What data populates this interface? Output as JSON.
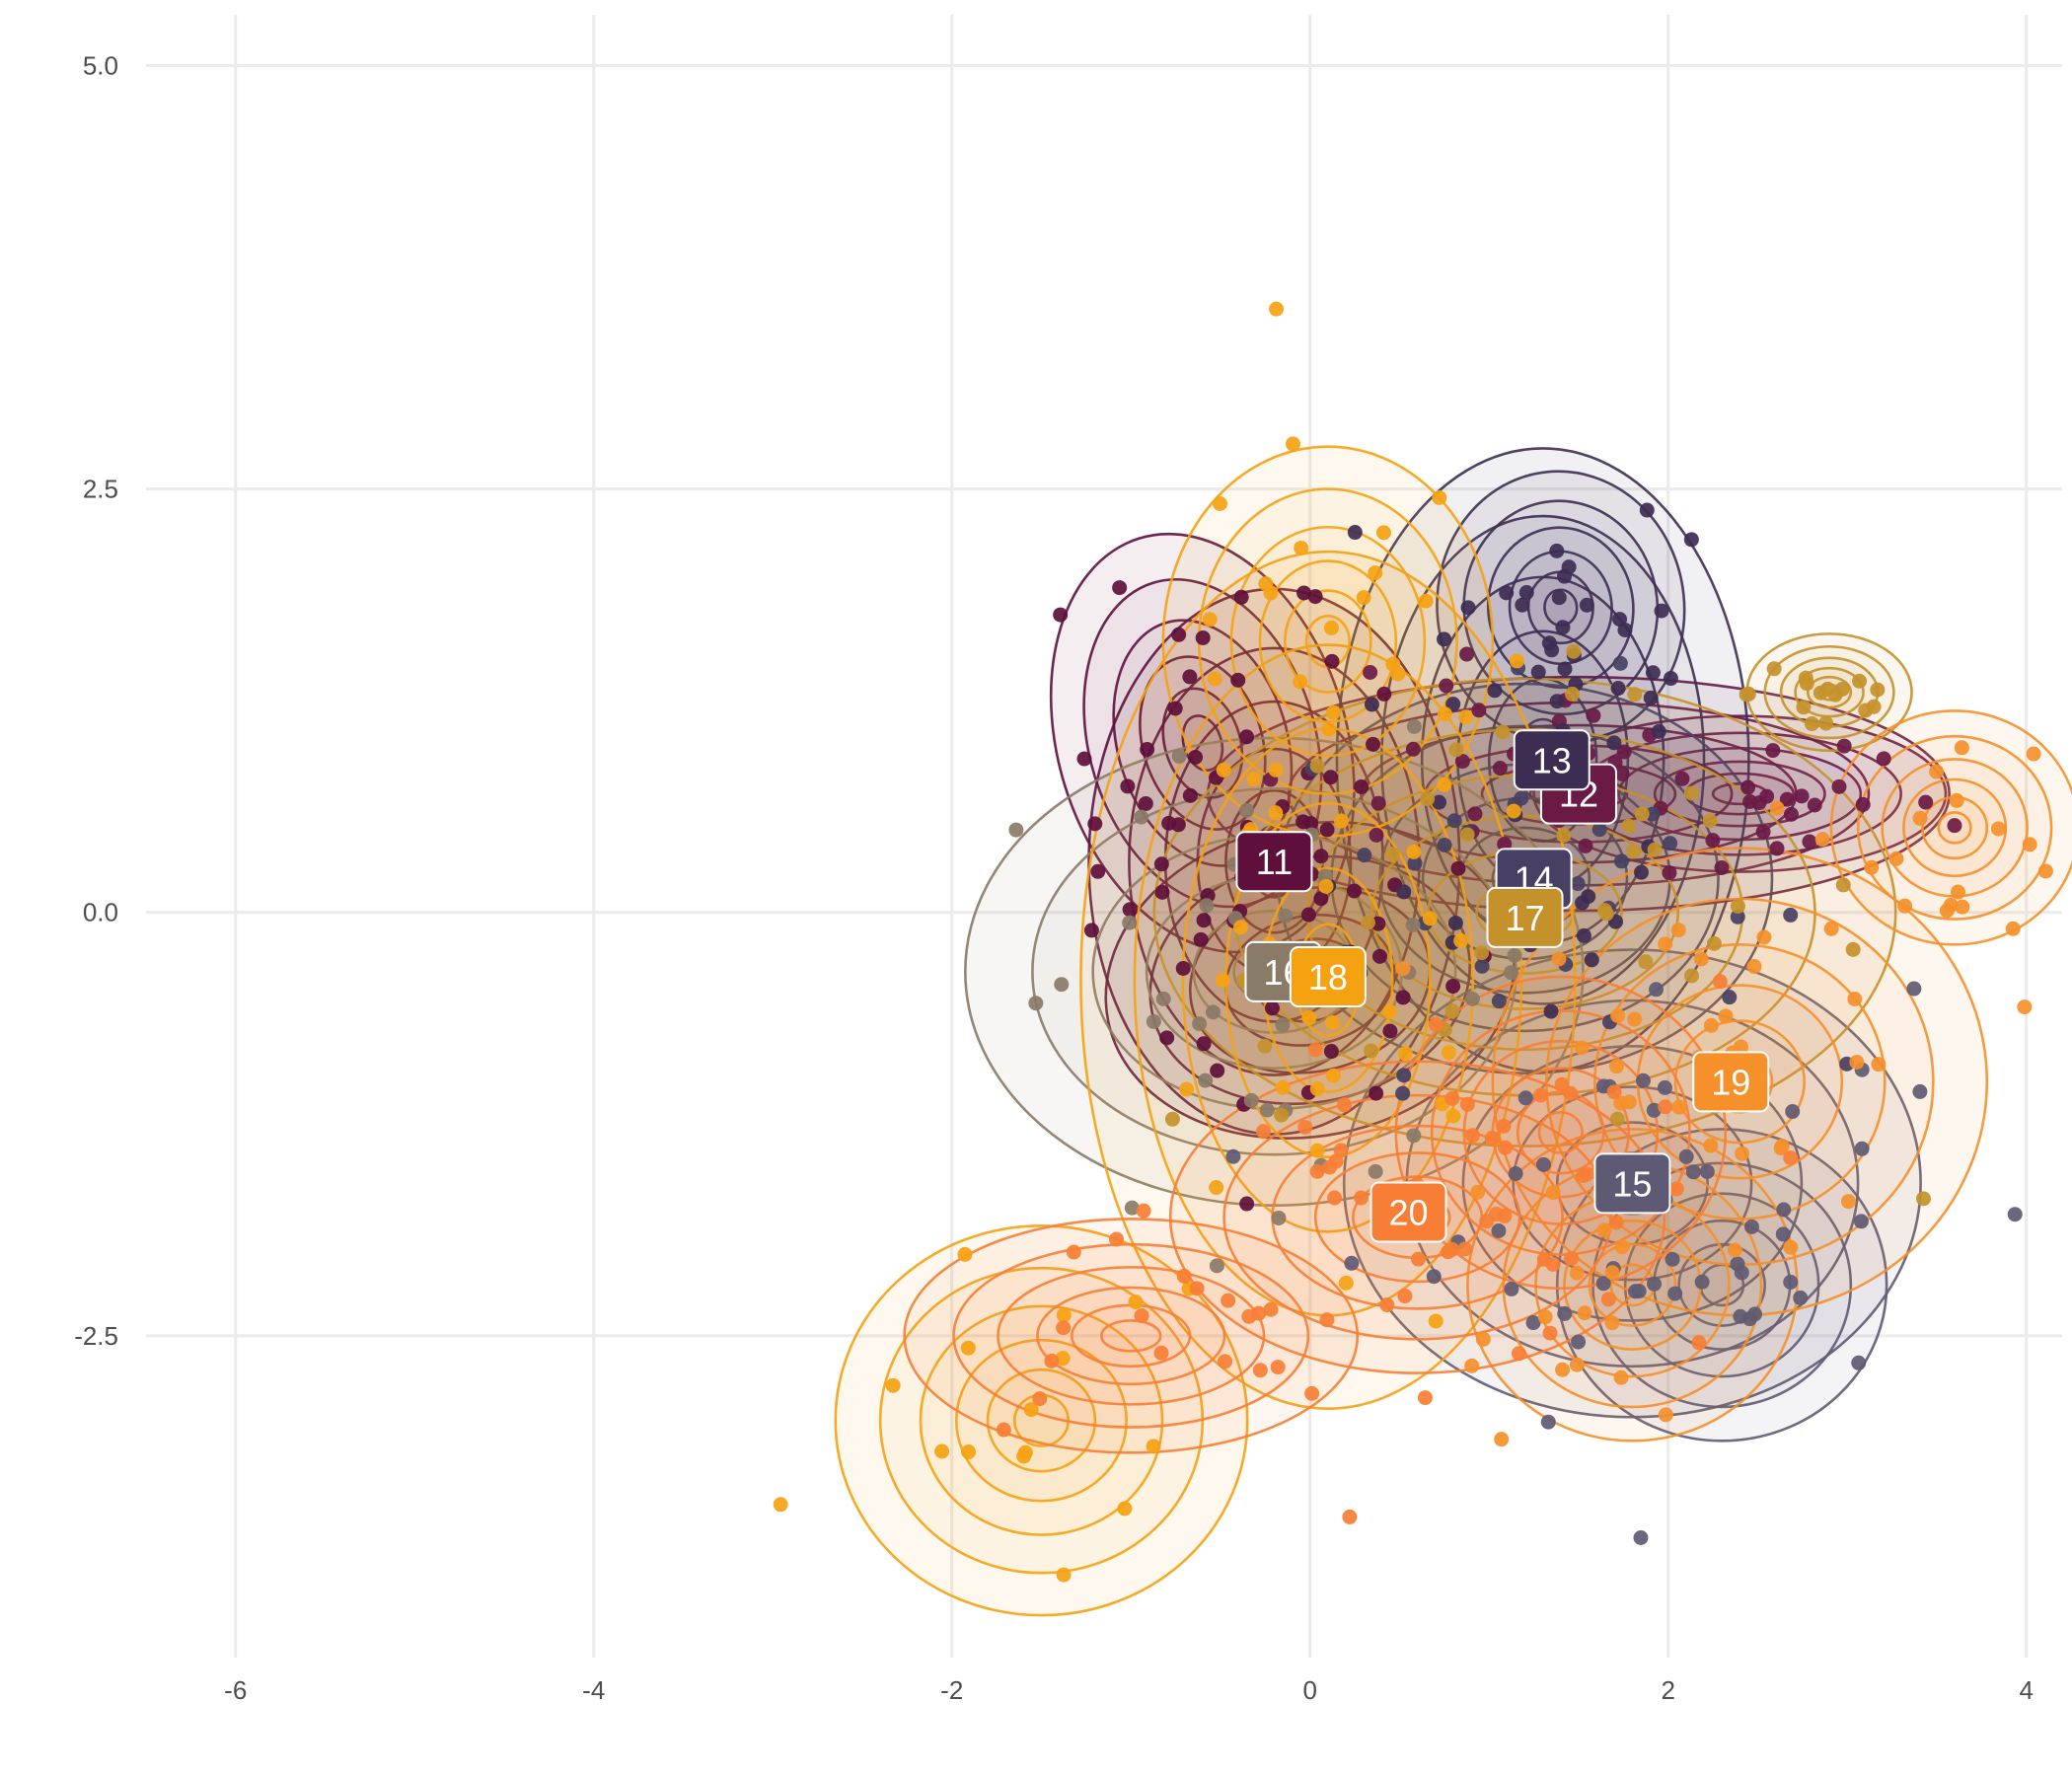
{
  "chart_data": {
    "type": "scatter",
    "title": "",
    "xlabel": "",
    "ylabel": "",
    "xlim": [
      -6.5,
      4.2
    ],
    "ylim": [
      -4.4,
      5.3
    ],
    "x_ticks": [
      -6,
      -4,
      -2,
      0,
      2,
      4
    ],
    "y_ticks": [
      -2.5,
      0.0,
      2.5,
      5.0
    ],
    "x_tick_labels": [
      "-6",
      "-4",
      "-2",
      "0",
      "2",
      "4"
    ],
    "y_tick_labels": [
      "-2.5",
      "0.0",
      "2.5",
      "5.0"
    ],
    "grid": true,
    "legend": "none",
    "clusters": [
      {
        "name": "11",
        "color": "#5e0f3b",
        "center": [
          -0.2,
          0.3
        ],
        "spread": [
          0.45,
          0.7
        ],
        "blobs": [
          {
            "x": -0.6,
            "y": 1.0,
            "sx": 0.35,
            "sy": 0.55,
            "r": 0.3
          },
          {
            "x": 0.0,
            "y": -0.4,
            "sx": 0.5,
            "sy": 0.4,
            "r": 0.2
          }
        ]
      },
      {
        "name": "12",
        "color": "#6a1a45",
        "center": [
          1.5,
          0.7
        ],
        "spread": [
          0.9,
          0.3
        ],
        "blobs": [
          {
            "x": 2.4,
            "y": 0.7,
            "sx": 0.5,
            "sy": 0.2,
            "r": 0.0
          }
        ]
      },
      {
        "name": "13",
        "color": "#3d2d52",
        "center": [
          1.3,
          0.9
        ],
        "spread": [
          0.5,
          0.8
        ],
        "blobs": [
          {
            "x": 1.4,
            "y": 1.8,
            "sx": 0.3,
            "sy": 0.35,
            "r": 0.1
          }
        ]
      },
      {
        "name": "14",
        "color": "#474063",
        "center": [
          1.2,
          0.2
        ],
        "spread": [
          0.6,
          0.5
        ],
        "blobs": []
      },
      {
        "name": "15",
        "color": "#5f5a73",
        "center": [
          1.8,
          -1.6
        ],
        "spread": [
          0.7,
          0.6
        ],
        "blobs": [
          {
            "x": 2.3,
            "y": -2.2,
            "sx": 0.4,
            "sy": 0.4,
            "r": 0.0
          }
        ]
      },
      {
        "name": "16",
        "color": "#8a7a68",
        "center": [
          -0.2,
          -0.35
        ],
        "spread": [
          0.75,
          0.6
        ],
        "blobs": []
      },
      {
        "name": "17",
        "color": "#c4912b",
        "center": [
          1.2,
          0.0
        ],
        "spread": [
          0.9,
          0.6
        ],
        "blobs": [
          {
            "x": 2.9,
            "y": 1.3,
            "sx": 0.2,
            "sy": 0.15,
            "r": 0.0
          }
        ]
      },
      {
        "name": "18",
        "color": "#f5a212",
        "center": [
          0.1,
          -0.4
        ],
        "spread": [
          0.6,
          1.1
        ],
        "blobs": [
          {
            "x": 0.1,
            "y": 1.6,
            "sx": 0.4,
            "sy": 0.5,
            "r": 0.0
          },
          {
            "x": -1.5,
            "y": -3.0,
            "sx": 0.5,
            "sy": 0.5,
            "r": 0.0
          }
        ]
      },
      {
        "name": "19",
        "color": "#f5902a",
        "center": [
          2.4,
          -1.0
        ],
        "spread": [
          0.6,
          0.6
        ],
        "blobs": [
          {
            "x": 3.6,
            "y": 0.5,
            "sx": 0.3,
            "sy": 0.3,
            "r": 0.0
          },
          {
            "x": 1.8,
            "y": -2.2,
            "sx": 0.4,
            "sy": 0.4,
            "r": 0.0
          }
        ]
      },
      {
        "name": "20",
        "color": "#f77e34",
        "center": [
          0.6,
          -1.8
        ],
        "spread": [
          0.6,
          0.4
        ],
        "blobs": [
          {
            "x": -1.0,
            "y": -2.5,
            "sx": 0.55,
            "sy": 0.3,
            "r": 0.0
          },
          {
            "x": 1.4,
            "y": -1.3,
            "sx": 0.4,
            "sy": 0.4,
            "r": 0.0
          }
        ]
      }
    ],
    "labels": [
      {
        "text": "11",
        "x": -0.2,
        "y": 0.3,
        "color": "#5e0f3b"
      },
      {
        "text": "12",
        "x": 1.5,
        "y": 0.7,
        "color": "#6a1a45"
      },
      {
        "text": "13",
        "x": 1.35,
        "y": 0.9,
        "color": "#3d2d52"
      },
      {
        "text": "14",
        "x": 1.25,
        "y": 0.2,
        "color": "#474063"
      },
      {
        "text": "15",
        "x": 1.8,
        "y": -1.6,
        "color": "#5f5a73"
      },
      {
        "text": "16",
        "x": -0.15,
        "y": -0.35,
        "color": "#8a7a68"
      },
      {
        "text": "17",
        "x": 1.2,
        "y": -0.03,
        "color": "#c4912b"
      },
      {
        "text": "18",
        "x": 0.1,
        "y": -0.38,
        "color": "#f5a212"
      },
      {
        "text": "19",
        "x": 2.35,
        "y": -1.0,
        "color": "#f5902a"
      },
      {
        "text": "20",
        "x": 0.55,
        "y": -1.77,
        "color": "#f77e34"
      }
    ]
  }
}
